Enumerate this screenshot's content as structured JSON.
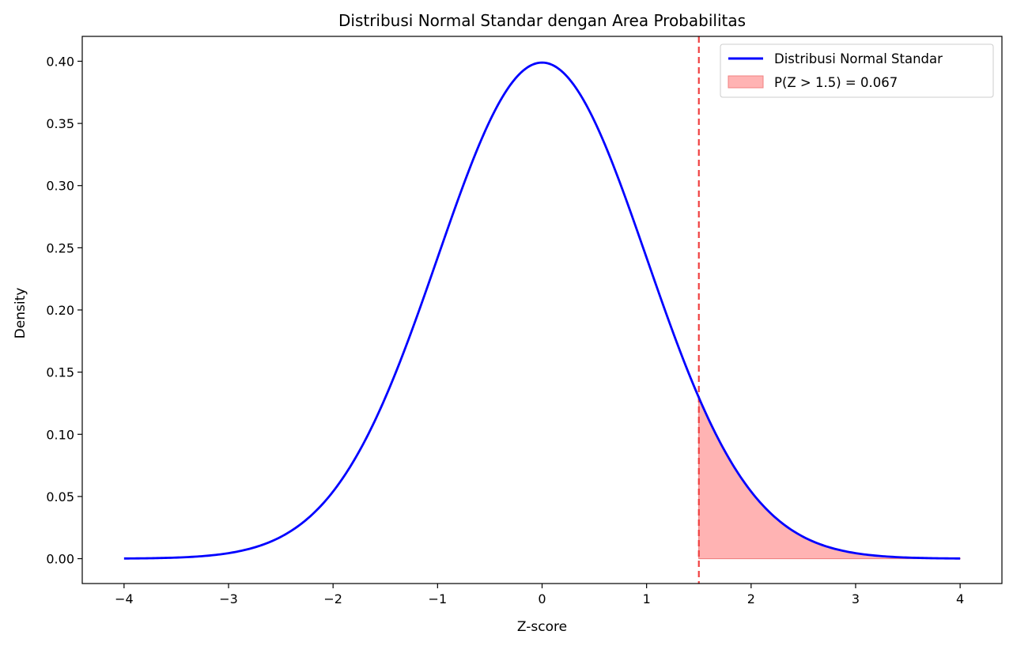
{
  "chart_data": {
    "type": "line",
    "title": "Distribusi Normal Standar dengan Area Probabilitas",
    "xlabel": "Z-score",
    "ylabel": "Density",
    "xlim": [
      -4.4,
      4.4
    ],
    "ylim": [
      -0.02,
      0.42
    ],
    "x_ticks": [
      {
        "value": -4,
        "label": "−4"
      },
      {
        "value": -3,
        "label": "−3"
      },
      {
        "value": -2,
        "label": "−2"
      },
      {
        "value": -1,
        "label": "−1"
      },
      {
        "value": 0,
        "label": "0"
      },
      {
        "value": 1,
        "label": "1"
      },
      {
        "value": 2,
        "label": "2"
      },
      {
        "value": 3,
        "label": "3"
      },
      {
        "value": 4,
        "label": "4"
      }
    ],
    "y_ticks": [
      {
        "value": 0.0,
        "label": "0.00"
      },
      {
        "value": 0.05,
        "label": "0.05"
      },
      {
        "value": 0.1,
        "label": "0.10"
      },
      {
        "value": 0.15,
        "label": "0.15"
      },
      {
        "value": 0.2,
        "label": "0.20"
      },
      {
        "value": 0.25,
        "label": "0.25"
      },
      {
        "value": 0.3,
        "label": "0.30"
      },
      {
        "value": 0.35,
        "label": "0.35"
      },
      {
        "value": 0.4,
        "label": "0.40"
      }
    ],
    "grid": false,
    "legend_position": "top-right",
    "series": [
      {
        "name": "Distribusi Normal Standar",
        "kind": "line",
        "color": "#0000ff",
        "x": [
          -4.0,
          -3.5,
          -3.0,
          -2.5,
          -2.0,
          -1.5,
          -1.0,
          -0.5,
          0.0,
          0.5,
          1.0,
          1.5,
          2.0,
          2.5,
          3.0,
          3.5,
          4.0
        ],
        "y": [
          0.0001,
          0.0009,
          0.0044,
          0.0175,
          0.054,
          0.1295,
          0.242,
          0.3521,
          0.3989,
          0.3521,
          0.242,
          0.1295,
          0.054,
          0.0175,
          0.0044,
          0.0009,
          0.0001
        ]
      },
      {
        "name": "P(Z > 1.5) = 0.067",
        "kind": "area",
        "color": "#ffb3b3",
        "edge_color": "#f08080",
        "x": [
          1.5,
          1.75,
          2.0,
          2.25,
          2.5,
          2.75,
          3.0,
          3.25,
          3.5,
          3.75,
          4.0
        ],
        "y": [
          0.1295,
          0.0863,
          0.054,
          0.0317,
          0.0175,
          0.0091,
          0.0044,
          0.002,
          0.0009,
          0.0004,
          0.0001
        ]
      }
    ],
    "vertical_line": {
      "x": 1.5,
      "color": "#f04040",
      "style": "dashed"
    }
  }
}
